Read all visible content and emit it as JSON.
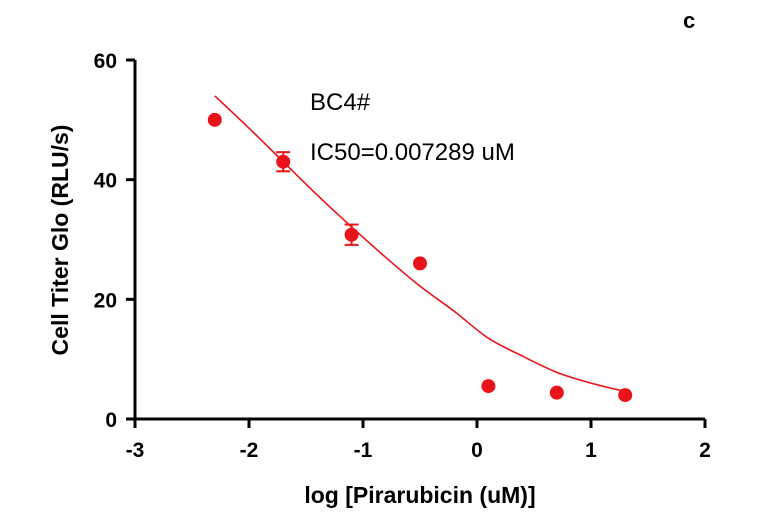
{
  "chart_data": {
    "type": "scatter",
    "panel_label": "c",
    "title": "",
    "xlabel": "log [Pirarubicin (uM)]",
    "ylabel": "Cell Titer Glo (RLU/s)",
    "xlim": [
      -3,
      2
    ],
    "ylim": [
      0,
      60
    ],
    "x_ticks": [
      -3,
      -2,
      -1,
      0,
      1,
      2
    ],
    "x_tick_labels": [
      "-3",
      "-2",
      "-1",
      "0",
      "1",
      "2"
    ],
    "y_ticks": [
      0,
      20,
      40,
      60
    ],
    "y_tick_labels": [
      "0",
      "20",
      "40",
      "60"
    ],
    "grid": false,
    "annotations": [
      "BC4#",
      "IC50=0.007289 uM"
    ],
    "points": [
      {
        "x": -2.3,
        "y": 50.0,
        "err": 0
      },
      {
        "x": -1.7,
        "y": 43.0,
        "err": 1.6
      },
      {
        "x": -1.1,
        "y": 30.8,
        "err": 1.7
      },
      {
        "x": -0.5,
        "y": 26.0,
        "err": 0
      },
      {
        "x": 0.1,
        "y": 5.5,
        "err": 0
      },
      {
        "x": 0.7,
        "y": 4.4,
        "err": 0
      },
      {
        "x": 1.3,
        "y": 4.0,
        "err": 0
      }
    ],
    "fit_curve": {
      "x": [
        -2.3,
        -2.0,
        -1.7,
        -1.4,
        -1.1,
        -0.8,
        -0.5,
        -0.2,
        0.1,
        0.4,
        0.7,
        1.0,
        1.3
      ],
      "y": [
        54.0,
        48.6,
        43.0,
        37.4,
        32.1,
        27.0,
        22.2,
        18.0,
        13.5,
        10.5,
        7.8,
        6.0,
        4.6
      ]
    },
    "colors": {
      "points": "#e8141a",
      "fit_line": "#e8141a",
      "axes": "#000000"
    }
  }
}
